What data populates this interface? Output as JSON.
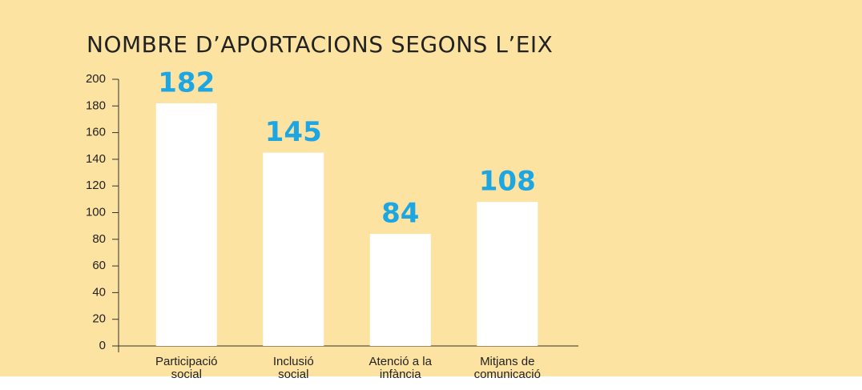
{
  "chart_data": {
    "type": "bar",
    "title": "NOMBRE D’APORTACIONS SEGONS L’EIX",
    "categories": [
      "Participació\nsocial",
      "Inclusió\nsocial",
      "Atenció a la\ninfància",
      "Mitjans de\ncomunicació"
    ],
    "values": [
      182,
      145,
      84,
      108
    ],
    "color": "#ffffff",
    "label_color": "#1ea6e2",
    "ylim": [
      0,
      200
    ],
    "yticks": [
      0,
      20,
      40,
      60,
      80,
      100,
      120,
      140,
      160,
      180,
      200
    ],
    "grid": false
  }
}
